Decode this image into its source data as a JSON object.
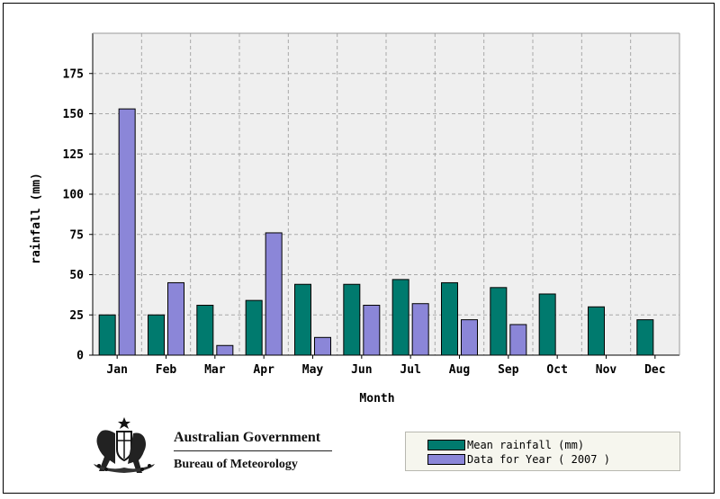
{
  "chart_data": {
    "type": "bar",
    "xlabel": "Month",
    "ylabel": "rainfall (mm)",
    "ylim": [
      0,
      200
    ],
    "yticks": [
      0,
      25,
      50,
      75,
      100,
      125,
      150,
      175
    ],
    "grid": true,
    "legend_position": "bottom-right",
    "categories": [
      "Jan",
      "Feb",
      "Mar",
      "Apr",
      "May",
      "Jun",
      "Jul",
      "Aug",
      "Sep",
      "Oct",
      "Nov",
      "Dec"
    ],
    "series": [
      {
        "name": "Mean rainfall (mm)",
        "color": "#007a6e",
        "values": [
          25,
          25,
          31,
          34,
          44,
          44,
          47,
          45,
          42,
          38,
          30,
          22
        ]
      },
      {
        "name": "Data for Year ( 2007 )",
        "color": "#8b86d8",
        "values": [
          153,
          45,
          6,
          76,
          11,
          31,
          32,
          22,
          19,
          null,
          null,
          null
        ]
      }
    ]
  },
  "branding": {
    "government": "Australian Government",
    "bureau": "Bureau of Meteorology",
    "crest_icon": "australian-coat-of-arms-icon"
  }
}
